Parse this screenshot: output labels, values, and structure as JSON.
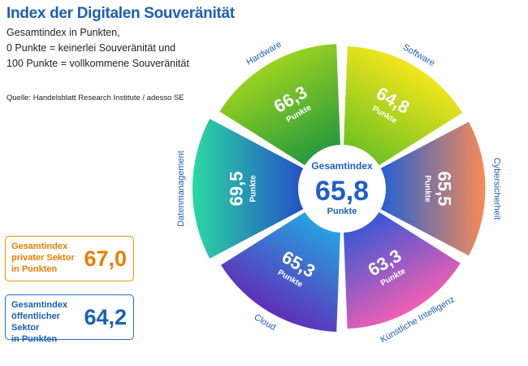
{
  "header": {
    "title": "Index der Digitalen Souveränität",
    "subtitle_lines": [
      "Gesamtindex in Punkten,",
      "0 Punkte = keinerlei Souveränität und",
      "100 Punkte = vollkommene Souveränität"
    ],
    "source": "Quelle: Handelsblatt Research Institute / adesso SE"
  },
  "boxes": {
    "private": {
      "label_lines": [
        "Gesamtindex",
        "privater Sektor",
        "in Punkten"
      ],
      "value": "67,0",
      "color": "#ee7d00"
    },
    "public": {
      "label_lines": [
        "Gesamtindex",
        "öffentlicher Sektor",
        "in Punkten"
      ],
      "value": "64,2",
      "color": "#1a5fb4"
    }
  },
  "chart_data": {
    "type": "pie",
    "center": {
      "label": "Gesamtindex",
      "value": "65,8",
      "unit": "Punkte"
    },
    "unit_label": "Punkte",
    "scale_max": 100,
    "segments": [
      {
        "name": "Hardware",
        "value": 66.3,
        "value_label": "66,3",
        "colors": [
          "#9bd31f",
          "#2a9a3d"
        ]
      },
      {
        "name": "Software",
        "value": 64.8,
        "value_label": "64,8",
        "colors": [
          "#f4e61c",
          "#74c222"
        ]
      },
      {
        "name": "Cybersicherheit",
        "value": 65.5,
        "value_label": "65,5",
        "colors": [
          "#f88b56",
          "#2a62cf"
        ]
      },
      {
        "name": "Künstliche Intelligenz",
        "value": 63.3,
        "value_label": "63,3",
        "colors": [
          "#ef5fb3",
          "#3d58d3"
        ]
      },
      {
        "name": "Cloud",
        "value": 65.3,
        "value_label": "65,3",
        "colors": [
          "#5f2fb8",
          "#27a0e0"
        ]
      },
      {
        "name": "Datenmanagement",
        "value": 69.5,
        "value_label": "69,5",
        "colors": [
          "#2bd9a2",
          "#2454c5"
        ]
      }
    ],
    "center_color": "#1f5fc8"
  }
}
